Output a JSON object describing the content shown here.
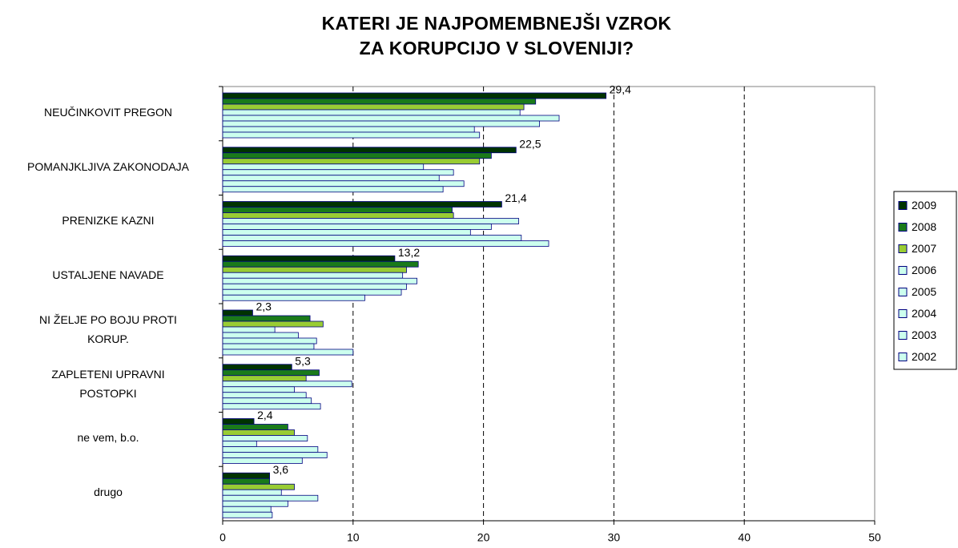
{
  "chart_data": {
    "type": "hbar",
    "title": "KATERI JE NAJPOMEMBNEJŠI VZROK\nZA KORUPCIJO V SLOVENIJI?",
    "categories": [
      "NEUČINKOVIT PREGON",
      "POMANJKLJIVA ZAKONODAJA",
      "PRENIZKE KAZNI",
      "USTALJENE NAVADE",
      "NI ŽELJE PO BOJU PROTI\nKORUP.",
      "ZAPLETENI UPRAVNI\nPOSTOPKI",
      "ne vem, b.o.",
      "drugo"
    ],
    "series": [
      {
        "name": "2009",
        "color": "#003300",
        "values": [
          29.4,
          22.5,
          21.4,
          13.2,
          2.3,
          5.3,
          2.4,
          3.6
        ],
        "value_labels": [
          "29,4",
          "22,5",
          "21,4",
          "13,2",
          "2,3",
          "5,3",
          "2,4",
          "3,6"
        ]
      },
      {
        "name": "2008",
        "color": "#1a7a1a",
        "values": [
          24.0,
          20.6,
          17.6,
          15.0,
          6.7,
          7.4,
          5.0,
          3.6
        ]
      },
      {
        "name": "2007",
        "color": "#99cc33",
        "values": [
          23.1,
          19.7,
          17.7,
          14.1,
          7.7,
          6.4,
          5.5,
          5.5
        ]
      },
      {
        "name": "2006",
        "color": "#ccffee",
        "values": [
          22.8,
          15.4,
          22.7,
          13.8,
          4.0,
          9.9,
          6.5,
          4.5
        ]
      },
      {
        "name": "2005",
        "color": "#ccffee",
        "values": [
          25.8,
          17.7,
          20.6,
          14.9,
          5.8,
          5.5,
          2.6,
          7.3
        ]
      },
      {
        "name": "2004",
        "color": "#ccffee",
        "values": [
          24.3,
          16.6,
          19.0,
          14.1,
          7.2,
          6.4,
          7.3,
          5.0
        ]
      },
      {
        "name": "2003",
        "color": "#ccffee",
        "values": [
          19.3,
          18.5,
          22.9,
          13.7,
          7.0,
          6.8,
          8.0,
          3.7
        ]
      },
      {
        "name": "2002",
        "color": "#ccffee",
        "values": [
          19.7,
          16.9,
          25.0,
          10.9,
          10.0,
          7.5,
          6.1,
          3.8
        ]
      }
    ],
    "xlim": [
      0,
      50
    ],
    "xticks": [
      0,
      10,
      20,
      30,
      40,
      50
    ],
    "grid": true,
    "legend": "right"
  }
}
